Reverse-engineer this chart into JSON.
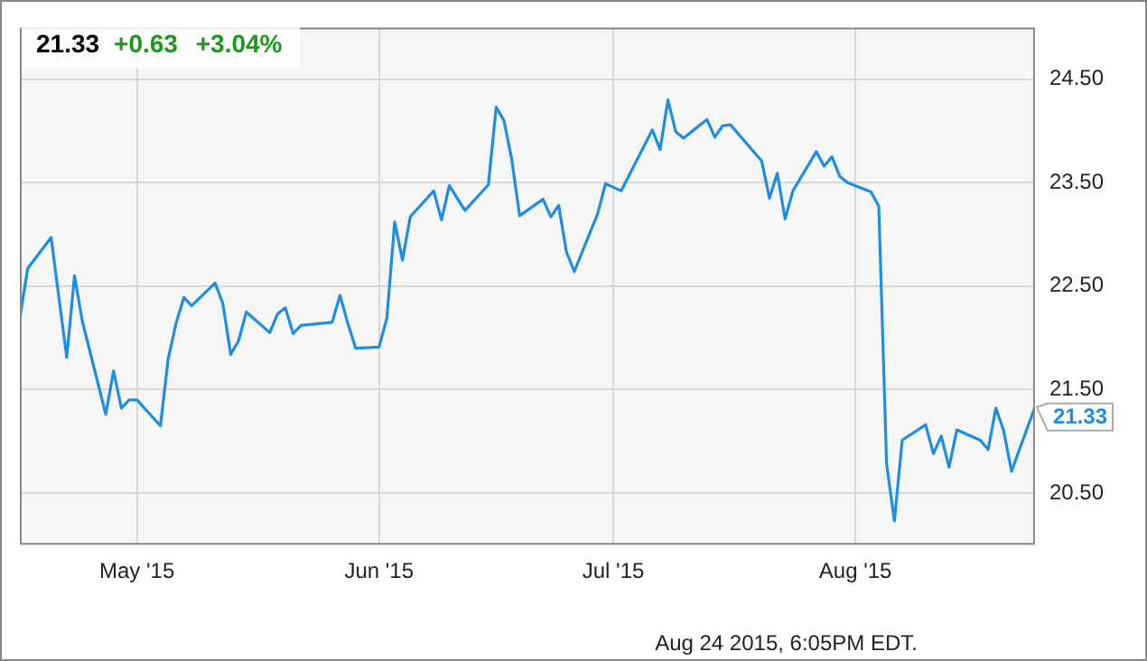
{
  "chart_data": {
    "type": "line",
    "title": "21.33",
    "subtitle": "+0.63 +3.04%",
    "x": [
      "2015-04-16",
      "2015-04-17",
      "2015-04-20",
      "2015-04-22",
      "2015-04-23",
      "2015-04-24",
      "2015-04-27",
      "2015-04-28",
      "2015-04-29",
      "2015-04-30",
      "2015-05-01",
      "2015-05-04",
      "2015-05-05",
      "2015-05-06",
      "2015-05-07",
      "2015-05-08",
      "2015-05-11",
      "2015-05-12",
      "2015-05-13",
      "2015-05-14",
      "2015-05-15",
      "2015-05-18",
      "2015-05-19",
      "2015-05-20",
      "2015-05-21",
      "2015-05-22",
      "2015-05-26",
      "2015-05-27",
      "2015-05-28",
      "2015-05-29",
      "2015-06-01",
      "2015-06-02",
      "2015-06-03",
      "2015-06-04",
      "2015-06-05",
      "2015-06-08",
      "2015-06-09",
      "2015-06-10",
      "2015-06-12",
      "2015-06-15",
      "2015-06-16",
      "2015-06-17",
      "2015-06-18",
      "2015-06-19",
      "2015-06-22",
      "2015-06-23",
      "2015-06-24",
      "2015-06-25",
      "2015-06-26",
      "2015-06-29",
      "2015-06-30",
      "2015-07-02",
      "2015-07-06",
      "2015-07-07",
      "2015-07-08",
      "2015-07-09",
      "2015-07-10",
      "2015-07-13",
      "2015-07-14",
      "2015-07-15",
      "2015-07-16",
      "2015-07-20",
      "2015-07-21",
      "2015-07-22",
      "2015-07-23",
      "2015-07-24",
      "2015-07-27",
      "2015-07-28",
      "2015-07-29",
      "2015-07-30",
      "2015-07-31",
      "2015-08-03",
      "2015-08-04",
      "2015-08-05",
      "2015-08-06",
      "2015-08-07",
      "2015-08-10",
      "2015-08-11",
      "2015-08-12",
      "2015-08-13",
      "2015-08-14",
      "2015-08-17",
      "2015-08-18",
      "2015-08-19",
      "2015-08-20",
      "2015-08-21",
      "2015-08-24"
    ],
    "series": [
      {
        "color": "#1f8ce6",
        "values": [
          22.19,
          22.67,
          22.97,
          21.81,
          22.6,
          22.16,
          21.26,
          21.68,
          21.32,
          21.4,
          21.4,
          21.15,
          21.8,
          22.14,
          22.39,
          22.31,
          22.53,
          22.33,
          21.84,
          21.97,
          22.25,
          22.05,
          22.23,
          22.29,
          22.04,
          22.12,
          22.15,
          22.41,
          22.14,
          21.9,
          21.91,
          22.19,
          23.12,
          22.75,
          23.17,
          23.42,
          23.14,
          23.47,
          23.23,
          23.48,
          24.23,
          24.1,
          23.72,
          23.18,
          23.34,
          23.17,
          23.28,
          22.83,
          22.64,
          23.2,
          23.49,
          23.42,
          24.01,
          23.82,
          24.3,
          23.99,
          23.93,
          24.11,
          23.94,
          24.05,
          24.06,
          23.71,
          23.35,
          23.59,
          23.15,
          23.42,
          23.8,
          23.66,
          23.75,
          23.56,
          23.5,
          23.41,
          23.27,
          20.78,
          20.23,
          21.01,
          21.16,
          20.88,
          21.05,
          20.75,
          21.11,
          21.01,
          20.92,
          21.32,
          21.1,
          20.71,
          21.33
        ]
      }
    ],
    "xlim": [
      "2015-04-16",
      "2015-08-24"
    ],
    "xticks": [
      {
        "value": "2015-05-01",
        "label": "May '15"
      },
      {
        "value": "2015-06-01",
        "label": "Jun '15"
      },
      {
        "value": "2015-07-01",
        "label": "Jul '15"
      },
      {
        "value": "2015-08-01",
        "label": "Aug '15"
      }
    ],
    "ylim": [
      20,
      25
    ],
    "yticks": [
      {
        "value": 20.5,
        "label": "20.50"
      },
      {
        "value": 21.5,
        "label": "21.50"
      },
      {
        "value": 22.5,
        "label": "22.50"
      },
      {
        "value": 23.5,
        "label": "23.50"
      },
      {
        "value": 24.5,
        "label": "24.50"
      }
    ],
    "grid": true,
    "legend": false,
    "marker": "none",
    "line_style": "solid",
    "annotations": [
      {
        "text": "21.33",
        "x": "2015-08-24",
        "y": 21.33
      },
      "Aug 24 2015, 6:05PM EDT."
    ]
  }
}
